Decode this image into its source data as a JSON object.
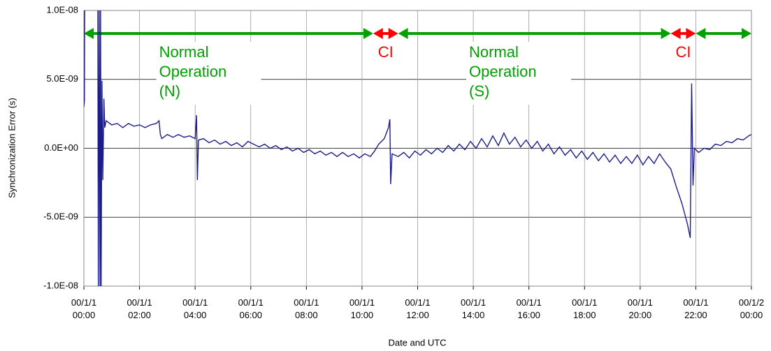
{
  "chart_data": {
    "type": "line",
    "x_label": "Date and UTC",
    "y_label": "Synchronization Error (s)",
    "xlim": [
      0,
      24
    ],
    "ylim": [
      -1e-08,
      1e-08
    ],
    "xticks": [
      {
        "value": 0,
        "label": "00/1/1 00:00"
      },
      {
        "value": 2,
        "label": "00/1/1 02:00"
      },
      {
        "value": 4,
        "label": "00/1/1 04:00"
      },
      {
        "value": 6,
        "label": "00/1/1 06:00"
      },
      {
        "value": 8,
        "label": "00/1/1 08:00"
      },
      {
        "value": 10,
        "label": "00/1/1 10:00"
      },
      {
        "value": 12,
        "label": "00/1/1 12:00"
      },
      {
        "value": 14,
        "label": "00/1/1 14:00"
      },
      {
        "value": 16,
        "label": "00/1/1 16:00"
      },
      {
        "value": 18,
        "label": "00/1/1 18:00"
      },
      {
        "value": 20,
        "label": "00/1/1 20:00"
      },
      {
        "value": 22,
        "label": "00/1/1 22:00"
      },
      {
        "value": 24,
        "label": "00/1/2 00:00"
      }
    ],
    "yticks": [
      {
        "value": -1e-08,
        "label": "-1.0E-08"
      },
      {
        "value": -5e-09,
        "label": "-5.0E-09"
      },
      {
        "value": 0,
        "label": "0.0E+00"
      },
      {
        "value": 5e-09,
        "label": "5.0E-09"
      },
      {
        "value": 1e-08,
        "label": "1.0E-08"
      }
    ],
    "grid": true,
    "x": [
      0,
      0.02,
      0.03,
      0.2,
      0.5,
      0.52,
      0.55,
      0.58,
      0.6,
      0.62,
      0.65,
      0.68,
      0.72,
      0.75,
      0.8,
      1.0,
      1.2,
      1.4,
      1.6,
      1.8,
      2.0,
      2.2,
      2.4,
      2.6,
      2.7,
      2.75,
      2.8,
      3.0,
      3.2,
      3.4,
      3.6,
      3.8,
      4.0,
      4.05,
      4.08,
      4.12,
      4.3,
      4.5,
      4.7,
      4.9,
      5.1,
      5.3,
      5.5,
      5.7,
      5.9,
      6.1,
      6.3,
      6.5,
      6.7,
      6.9,
      7.1,
      7.3,
      7.5,
      7.7,
      7.9,
      8.1,
      8.3,
      8.5,
      8.7,
      8.9,
      9.1,
      9.3,
      9.5,
      9.7,
      9.9,
      10.1,
      10.3,
      10.45,
      10.6,
      10.8,
      10.95,
      11.0,
      11.03,
      11.08,
      11.3,
      11.5,
      11.7,
      11.9,
      12.1,
      12.3,
      12.5,
      12.7,
      12.9,
      13.1,
      13.3,
      13.5,
      13.7,
      13.9,
      14.1,
      14.3,
      14.5,
      14.7,
      14.9,
      15.1,
      15.3,
      15.5,
      15.7,
      15.9,
      16.1,
      16.3,
      16.5,
      16.7,
      16.9,
      17.1,
      17.3,
      17.5,
      17.7,
      17.9,
      18.1,
      18.3,
      18.5,
      18.7,
      18.9,
      19.1,
      19.3,
      19.5,
      19.7,
      19.9,
      20.1,
      20.3,
      20.5,
      20.7,
      20.9,
      21.1,
      21.3,
      21.5,
      21.7,
      21.8,
      21.85,
      21.9,
      21.95,
      22.1,
      22.3,
      22.5,
      22.7,
      22.9,
      23.1,
      23.3,
      23.5,
      23.7,
      23.9,
      24
    ],
    "series": [
      {
        "color": "#1c1c8a",
        "values": [
          3e-09,
          3.5e-09,
          1e-08,
          null,
          1e-08,
          -1e-08,
          1e-08,
          -1e-08,
          1e-08,
          -1e-08,
          4.9e-09,
          -2.3e-09,
          3.6e-09,
          1.5e-09,
          2e-09,
          1.7e-09,
          1.8e-09,
          1.5e-09,
          1.8e-09,
          1.6e-09,
          1.7e-09,
          1.5e-09,
          1.7e-09,
          1.8e-09,
          2e-09,
          1e-09,
          7e-10,
          1e-09,
          8e-10,
          1e-09,
          8e-10,
          9e-10,
          7e-10,
          2.4e-09,
          -2.3e-09,
          6e-10,
          7e-10,
          4e-10,
          6e-10,
          3e-10,
          5e-10,
          2e-10,
          4e-10,
          1e-10,
          5e-10,
          3e-10,
          1e-10,
          3e-10,
          0,
          2e-10,
          -1e-10,
          1e-10,
          -2e-10,
          0,
          -3e-10,
          -1e-10,
          -4e-10,
          -2e-10,
          -5e-10,
          -3e-10,
          -6e-10,
          -3e-10,
          -6e-10,
          -4e-10,
          -7e-10,
          -4e-10,
          -6e-10,
          -2e-10,
          3e-10,
          7e-10,
          1.5e-09,
          2.1e-09,
          -2.6e-09,
          -4e-10,
          -6e-10,
          -3e-10,
          -7e-10,
          -2e-10,
          -5e-10,
          -1e-10,
          -4e-10,
          0,
          -3e-10,
          2e-10,
          -2e-10,
          3e-10,
          -1e-10,
          5e-10,
          0,
          7e-10,
          1e-10,
          9e-10,
          2e-10,
          1.1e-09,
          3e-10,
          8e-10,
          1e-10,
          6e-10,
          0,
          5e-10,
          -2e-10,
          3e-10,
          -4e-10,
          1e-10,
          -5e-10,
          -1e-10,
          -7e-10,
          -2e-10,
          -8e-10,
          -3e-10,
          -9e-10,
          -4e-10,
          -1e-09,
          -5e-10,
          -1.1e-09,
          -6e-10,
          -1.1e-09,
          -5e-10,
          -1.2e-09,
          -6e-10,
          -1.1e-09,
          -4e-10,
          -1e-09,
          -1.5e-09,
          -2.8e-09,
          -4e-09,
          -5.5e-09,
          -6.5e-09,
          4.7e-09,
          -2.7e-09,
          0,
          -3e-10,
          0,
          -1e-10,
          3e-10,
          2e-10,
          5e-10,
          4e-10,
          7e-10,
          6e-10,
          9e-10,
          1e-09
        ]
      }
    ],
    "annotations": [
      {
        "from": 0,
        "to": 10.4,
        "color": "#00a000",
        "lines": [
          "Normal",
          "Operation",
          "(N)"
        ]
      },
      {
        "from": 10.4,
        "to": 11.3,
        "color": "#ff0000",
        "lines": [
          "CI"
        ]
      },
      {
        "from": 11.3,
        "to": 21.1,
        "color": "#00a000",
        "lines": [
          "Normal",
          "Operation",
          "(S)"
        ]
      },
      {
        "from": 21.1,
        "to": 22,
        "color": "#ff0000",
        "lines": [
          "CI"
        ]
      },
      {
        "from": 22,
        "to": 24,
        "color": "#00a000"
      }
    ]
  }
}
